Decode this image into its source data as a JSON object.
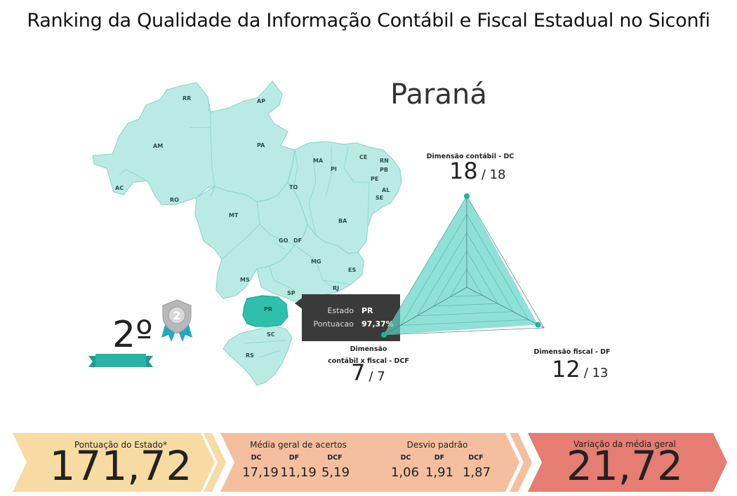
{
  "header": {
    "title": "Ranking da Qualidade da Informação Contábil e Fiscal Estadual no Siconfi"
  },
  "state": {
    "name": "Paraná"
  },
  "ranking": {
    "position": "2º",
    "badge_number": "2"
  },
  "map": {
    "labels": [
      "RR",
      "AP",
      "AM",
      "PA",
      "MA",
      "CE",
      "RN",
      "PB",
      "PI",
      "PE",
      "AL",
      "SE",
      "AC",
      "RO",
      "TO",
      "BA",
      "MT",
      "GO",
      "DF",
      "MG",
      "ES",
      "MS",
      "SP",
      "RJ",
      "PR",
      "SC",
      "RS"
    ],
    "highlight": "PR",
    "colors": {
      "fill": "#b9ebe4",
      "border": "#8fd9cf",
      "highlight": "#2fc0ad"
    }
  },
  "tooltip": {
    "estado_label": "Estado",
    "estado_value": "PR",
    "pontuacao_label": "Pontuacao",
    "pontuacao_value": "97,37%"
  },
  "radar": {
    "dc": {
      "label": "Dimensão contábil - DC",
      "score": "18",
      "max": "/ 18"
    },
    "df": {
      "label": "Dimensão fiscal - DF",
      "score": "12",
      "max": "/ 13"
    },
    "dcf": {
      "label_line1": "Dimensão",
      "label_line2": "contábil x fiscal - DCF",
      "score": "7",
      "max": "/ 7"
    },
    "fractions": {
      "dc": 1.0,
      "df": 0.923,
      "dcf": 1.0
    },
    "color": "#5fd3c4"
  },
  "footer": {
    "pontuacao": {
      "label": "Pontuação do Estado*",
      "value": "171,72"
    },
    "media": {
      "label": "Média geral de acertos",
      "headers": [
        "DC",
        "DF",
        "DCF"
      ],
      "values": [
        "17,19",
        "11,19",
        "5,19"
      ]
    },
    "desvio": {
      "label": "Desvio padrão",
      "headers": [
        "DC",
        "DF",
        "DCF"
      ],
      "values": [
        "1,06",
        "1,91",
        "1,87"
      ]
    },
    "variacao": {
      "label": "Variação da média geral",
      "value": "21,72"
    },
    "colors": {
      "yellow": "#f7dba3",
      "salmon": "#f5bf9f",
      "red": "#e57d72"
    }
  }
}
